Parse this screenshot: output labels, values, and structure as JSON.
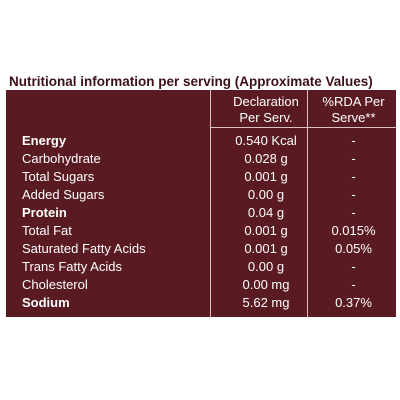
{
  "title": "Nutritional information per serving (Approximate Values)",
  "headers": {
    "declaration": [
      "Declaration",
      "Per Serv."
    ],
    "rda": [
      "%RDA Per",
      "Serve**"
    ]
  },
  "rows": [
    {
      "nutrient": "Energy",
      "declaration": "0.540 Kcal",
      "rda": "-"
    },
    {
      "nutrient": "Carbohydrate",
      "declaration": "0.028 g",
      "rda": "-"
    },
    {
      "nutrient": "Total Sugars",
      "declaration": "0.001 g",
      "rda": "-"
    },
    {
      "nutrient": "Added Sugars",
      "declaration": "0.00 g",
      "rda": "-"
    },
    {
      "nutrient": "Protein",
      "declaration": "0.04 g",
      "rda": "-"
    },
    {
      "nutrient": "Total Fat",
      "declaration": "0.001 g",
      "rda": "0.015%"
    },
    {
      "nutrient": "Saturated Fatty Acids",
      "declaration": "0.001 g",
      "rda": "0.05%"
    },
    {
      "nutrient": "Trans Fatty Acids",
      "declaration": "0.00 g",
      "rda": "-"
    },
    {
      "nutrient": "Cholesterol",
      "declaration": "0.00 mg",
      "rda": "-"
    },
    {
      "nutrient": "Sodium",
      "declaration": "5.62 mg",
      "rda": "0.37%"
    }
  ]
}
